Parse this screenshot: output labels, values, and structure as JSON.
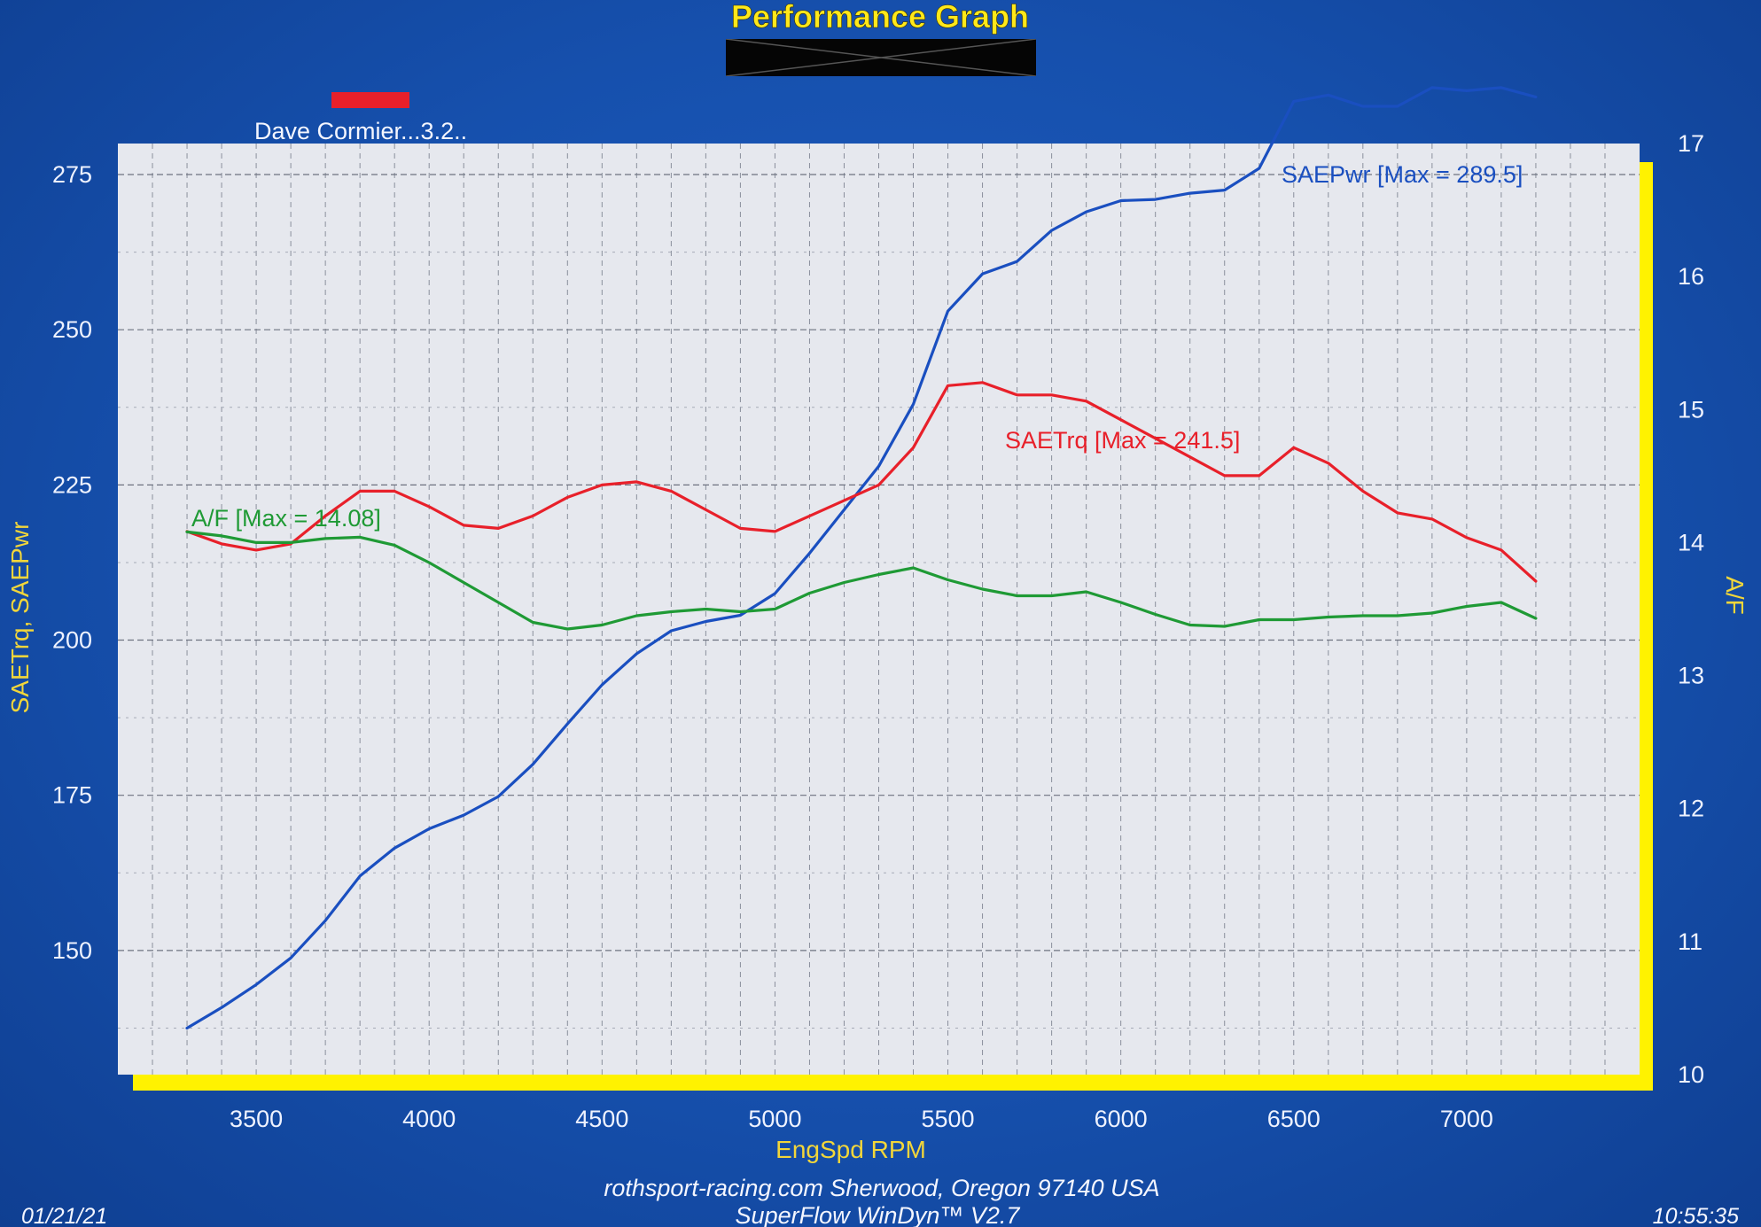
{
  "chart_data": {
    "type": "line",
    "title": "Performance Graph",
    "run_label": "Dave Cormier...3.2..",
    "run_color": "#e8202a",
    "xlabel": "EngSpd  RPM",
    "ylabel_left": "SAETrq, SAEPwr",
    "ylabel_right": "A/F",
    "xlim": [
      3100,
      7500
    ],
    "ylim_left": [
      130,
      280
    ],
    "ylim_right": [
      10,
      17
    ],
    "x_ticks": [
      3500,
      4000,
      4500,
      5000,
      5500,
      6000,
      6500,
      7000
    ],
    "y_ticks_left": [
      150,
      175,
      200,
      225,
      250,
      275
    ],
    "y_ticks_right": [
      10,
      11,
      12,
      13,
      14,
      15,
      16,
      17
    ],
    "grid": true,
    "series": [
      {
        "name": "SAEPwr",
        "annotation": "SAEPwr [Max = 289.5]",
        "axis": "left",
        "color": "#1a4fc0",
        "x": [
          3300,
          3400,
          3500,
          3600,
          3700,
          3800,
          3900,
          4000,
          4100,
          4200,
          4300,
          4400,
          4500,
          4600,
          4700,
          4800,
          4900,
          5000,
          5100,
          5200,
          5300,
          5400,
          5500,
          5600,
          5700,
          5800,
          5900,
          6000,
          6100,
          6200,
          6300,
          6400,
          6500,
          6600,
          6700,
          6800,
          6900,
          7000,
          7100,
          7200
        ],
        "values": [
          137.5,
          140.8,
          144.5,
          148.8,
          154.8,
          162.0,
          166.5,
          169.6,
          171.8,
          174.8,
          180.0,
          186.5,
          192.8,
          197.8,
          201.5,
          203.0,
          204.0,
          207.5,
          214.0,
          221.0,
          228.0,
          238.0,
          253.0,
          259.0,
          261.0,
          266.0,
          269.0,
          270.8,
          271.0,
          272.0,
          272.5,
          276.0,
          286.8,
          287.8,
          286.0,
          286.0,
          289.0,
          288.5,
          289.0,
          287.5
        ]
      },
      {
        "name": "SAETrq",
        "annotation": "SAETrq [Max = 241.5]",
        "axis": "left",
        "color": "#e8202a",
        "x": [
          3300,
          3400,
          3500,
          3600,
          3700,
          3800,
          3900,
          4000,
          4100,
          4200,
          4300,
          4400,
          4500,
          4600,
          4700,
          4800,
          4900,
          5000,
          5100,
          5200,
          5300,
          5400,
          5500,
          5600,
          5700,
          5800,
          5900,
          6000,
          6100,
          6200,
          6300,
          6400,
          6500,
          6600,
          6700,
          6800,
          6900,
          7000,
          7100,
          7200
        ],
        "values": [
          217.5,
          215.5,
          214.5,
          215.5,
          220.0,
          224.0,
          224.0,
          221.5,
          218.5,
          218.0,
          220.0,
          223.0,
          225.0,
          225.5,
          224.0,
          221.0,
          218.0,
          217.5,
          220.0,
          222.5,
          225.0,
          231.0,
          241.0,
          241.5,
          239.5,
          239.5,
          238.5,
          235.5,
          232.5,
          229.5,
          226.5,
          226.5,
          231.0,
          228.5,
          224.0,
          220.5,
          219.5,
          216.5,
          214.5,
          209.5
        ]
      },
      {
        "name": "A/F",
        "annotation": "A/F   [Max = 14.08]",
        "axis": "right",
        "color": "#1f9a35",
        "x": [
          3300,
          3400,
          3500,
          3600,
          3700,
          3800,
          3900,
          4000,
          4100,
          4200,
          4300,
          4400,
          4500,
          4600,
          4700,
          4800,
          4900,
          5000,
          5100,
          5200,
          5300,
          5400,
          5500,
          5600,
          5700,
          5800,
          5900,
          6000,
          6100,
          6200,
          6300,
          6400,
          6500,
          6600,
          6700,
          6800,
          6900,
          7000,
          7100,
          7200
        ],
        "values": [
          14.08,
          14.05,
          14.0,
          14.0,
          14.03,
          14.04,
          13.98,
          13.85,
          13.7,
          13.55,
          13.4,
          13.35,
          13.38,
          13.45,
          13.48,
          13.5,
          13.48,
          13.5,
          13.62,
          13.7,
          13.76,
          13.81,
          13.72,
          13.65,
          13.6,
          13.6,
          13.63,
          13.55,
          13.46,
          13.38,
          13.37,
          13.42,
          13.42,
          13.44,
          13.45,
          13.45,
          13.47,
          13.52,
          13.55,
          13.43
        ]
      }
    ]
  },
  "footer": {
    "credit": "rothsport-racing.com  Sherwood, Oregon 97140 USA",
    "software": "SuperFlow WinDyn™  V2.7",
    "date": "01/21/21",
    "time": "10:55:35"
  },
  "colors": {
    "background": "#1650ad",
    "plot_area": "#e6e8ee",
    "title": "#ffe81a",
    "accent_bar": "#fff200",
    "axis_label": "#f2d63a",
    "tick_label": "#eef2ff"
  }
}
